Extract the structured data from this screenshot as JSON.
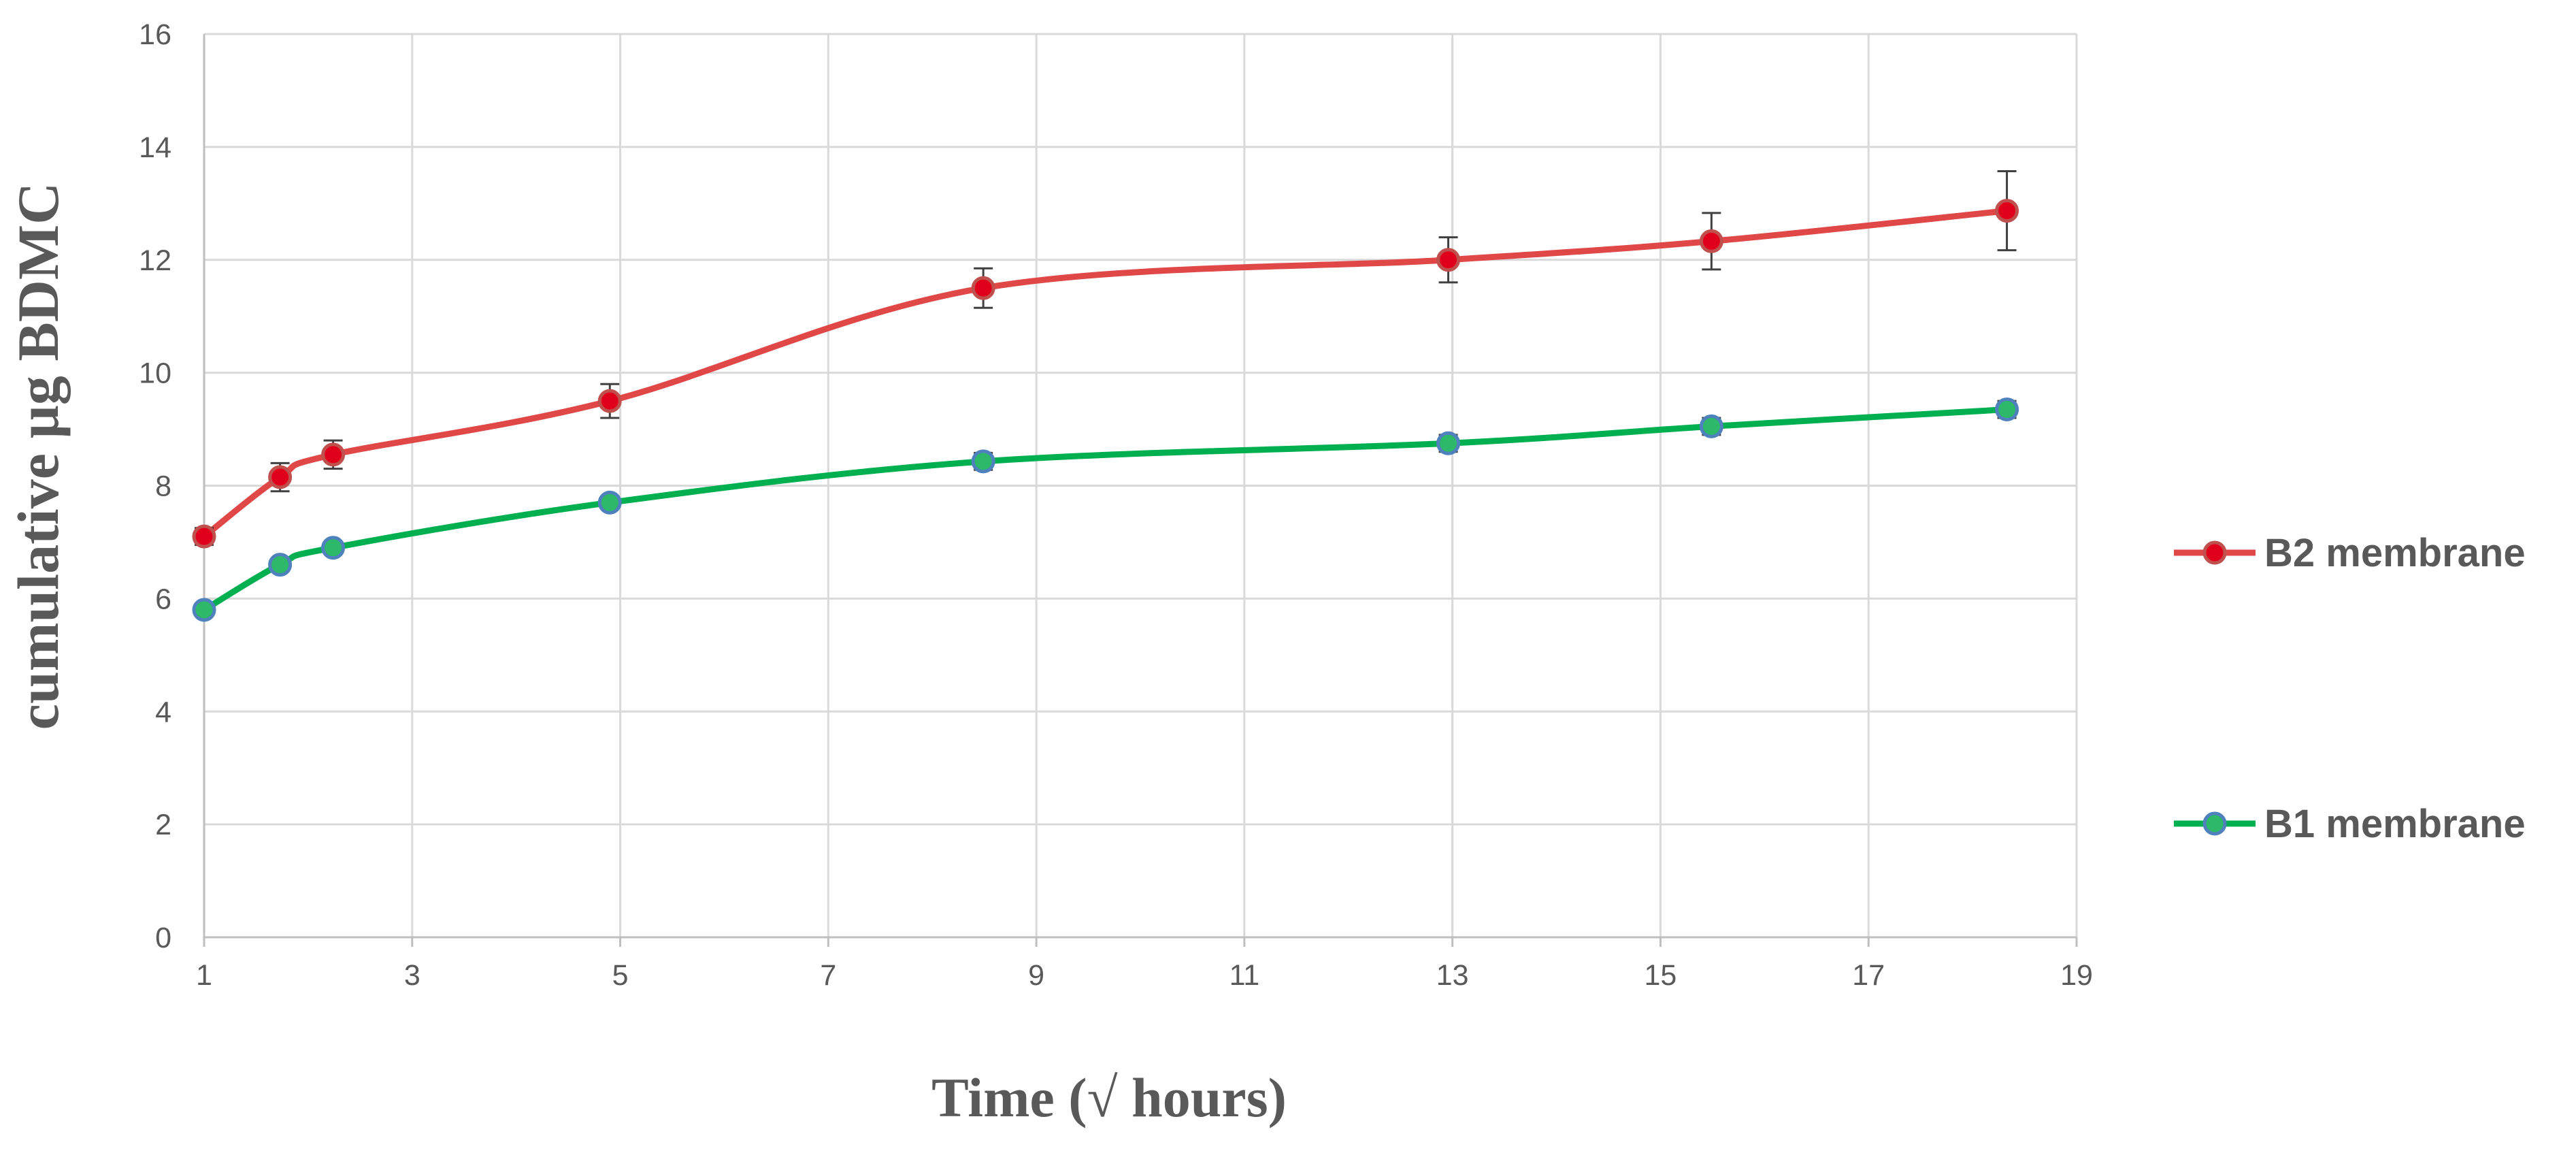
{
  "chart_data": {
    "type": "line",
    "xlabel": "Time (√ hours)",
    "ylabel": "cumulative µg BDMC",
    "xlim": [
      1,
      19
    ],
    "ylim": [
      0,
      16
    ],
    "xticks": [
      1,
      3,
      5,
      7,
      9,
      11,
      13,
      15,
      17,
      19
    ],
    "yticks": [
      0,
      2,
      4,
      6,
      8,
      10,
      12,
      14,
      16
    ],
    "grid": true,
    "legend_position": "right",
    "series": [
      {
        "name": "B2 membrane",
        "color": "#e04848",
        "marker_color": "#e0001b",
        "x": [
          1,
          1.73,
          2.24,
          4.9,
          8.49,
          12.96,
          15.49,
          18.33
        ],
        "y": [
          7.1,
          8.15,
          8.55,
          9.5,
          11.5,
          12.0,
          12.33,
          12.87
        ],
        "error": [
          0.15,
          0.25,
          0.25,
          0.3,
          0.35,
          0.4,
          0.5,
          0.7
        ]
      },
      {
        "name": "B1 membrane",
        "color": "#00b050",
        "marker_color": "#2db86a",
        "x": [
          1,
          1.73,
          2.24,
          4.9,
          8.49,
          12.96,
          15.49,
          18.33
        ],
        "y": [
          5.8,
          6.6,
          6.9,
          7.7,
          8.43,
          8.75,
          9.05,
          9.35
        ],
        "error": [
          0.08,
          0.08,
          0.08,
          0.1,
          0.15,
          0.15,
          0.15,
          0.15
        ]
      }
    ]
  }
}
